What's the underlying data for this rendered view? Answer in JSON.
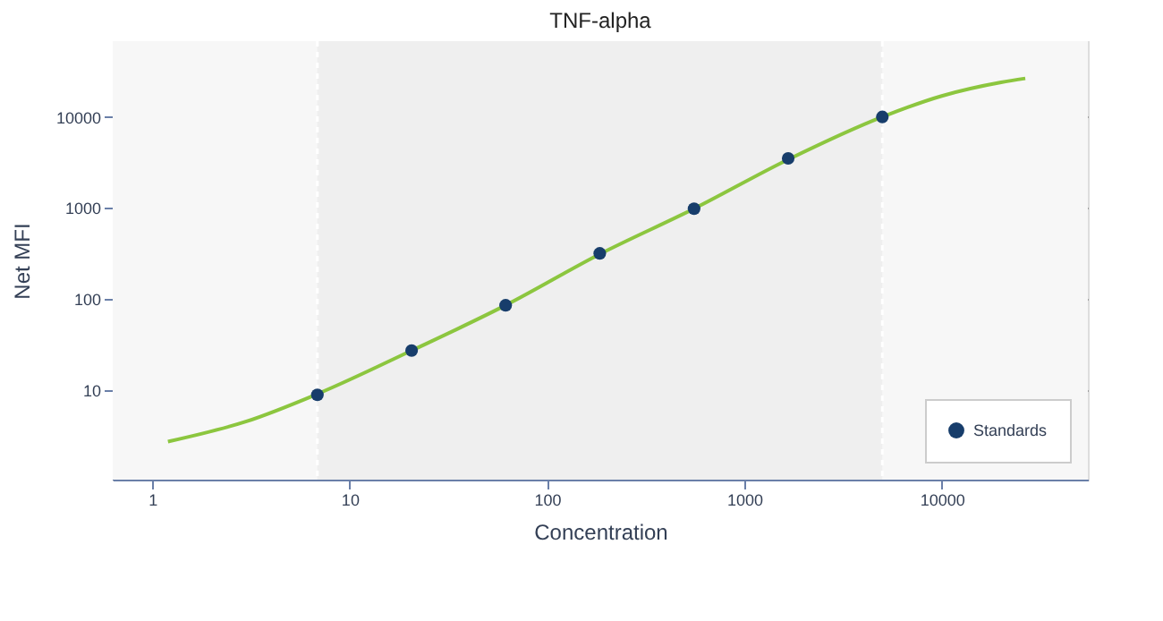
{
  "chart_data": {
    "type": "scatter",
    "title": "TNF-alpha",
    "xlabel": "Concentration",
    "ylabel": "Net MFI",
    "log": "xy",
    "xlim": [
      0.63,
      55000
    ],
    "ylim": [
      1.03,
      68000
    ],
    "xticks": [
      1,
      10,
      100,
      1000,
      10000
    ],
    "yticks": [
      10,
      100,
      1000,
      10000
    ],
    "grid": "y",
    "legend": "bottom right",
    "bands": [
      {
        "axis": "x",
        "from": 6.86,
        "to": 5000,
        "color": "#efefef"
      }
    ],
    "ref_lines": [
      {
        "axis": "x",
        "value": 6.86,
        "color": "#ffffff",
        "line_style": "dashed"
      },
      {
        "axis": "x",
        "value": 5000,
        "color": "#ffffff",
        "line_style": "dashed"
      }
    ],
    "series": [
      {
        "type": "line",
        "color": "#8cc63f",
        "line_style": "solid",
        "marker": "none",
        "x": [
          1.2,
          3,
          6.86,
          20.6,
          61.7,
          185,
          556,
          1667,
          5000,
          10000,
          20000,
          26500
        ],
        "values": [
          2.7,
          4.5,
          9,
          27,
          85,
          310,
          980,
          3400,
          10000,
          17000,
          24000,
          26500
        ]
      },
      {
        "name": "Standards",
        "color": "#173d6b",
        "marker": "circle",
        "x": [
          6.86,
          20.6,
          61.7,
          185,
          556,
          1667,
          5000
        ],
        "values": [
          8.8,
          27,
          85,
          316,
          980,
          3500,
          10000
        ]
      }
    ]
  }
}
